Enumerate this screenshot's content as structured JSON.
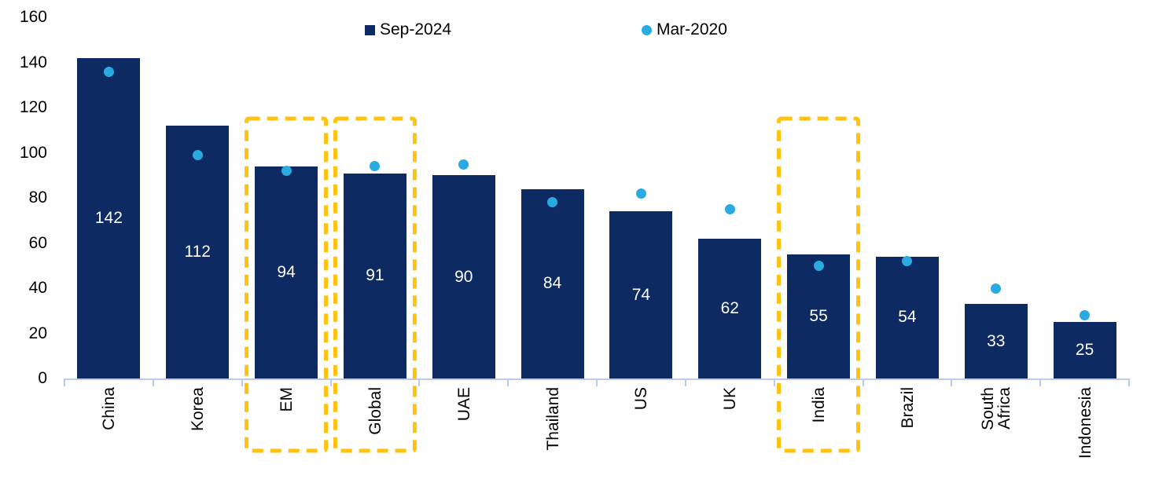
{
  "legend": {
    "items": [
      {
        "label": "Sep-2024",
        "marker": "square-icon"
      },
      {
        "label": "Mar-2020",
        "marker": "circle-icon"
      }
    ]
  },
  "colors": {
    "bar": "#0d2a63",
    "dot": "#29abe2",
    "highlight": "#ffc20e",
    "axis": "#b9cbee",
    "value_label": "#ffffff",
    "text": "#000000",
    "background": "#ffffff"
  },
  "chart_data": {
    "type": "bar",
    "title": "",
    "xlabel": "",
    "ylabel": "",
    "categories": [
      "China",
      "Korea",
      "EM",
      "Global",
      "UAE",
      "Thailand",
      "US",
      "UK",
      "India",
      "Brazil",
      "South Africa",
      "Indonesia"
    ],
    "series": [
      {
        "name": "Sep-2024",
        "type": "bar",
        "values": [
          142,
          112,
          94,
          91,
          90,
          84,
          74,
          62,
          55,
          54,
          33,
          25
        ]
      },
      {
        "name": "Mar-2020",
        "type": "scatter",
        "values": [
          136,
          99,
          92,
          94,
          95,
          78,
          82,
          75,
          50,
          52,
          40,
          28
        ]
      }
    ],
    "bar_value_labels": [
      "142",
      "112",
      "94",
      "91",
      "90",
      "84",
      "74",
      "62",
      "55",
      "54",
      "33",
      "25"
    ],
    "highlighted_categories": [
      "EM",
      "Global",
      "India"
    ],
    "yticks": [
      0,
      20,
      40,
      60,
      80,
      100,
      120,
      140,
      160
    ],
    "ylim": [
      0,
      160
    ],
    "grid": false,
    "legend_position": "top"
  }
}
